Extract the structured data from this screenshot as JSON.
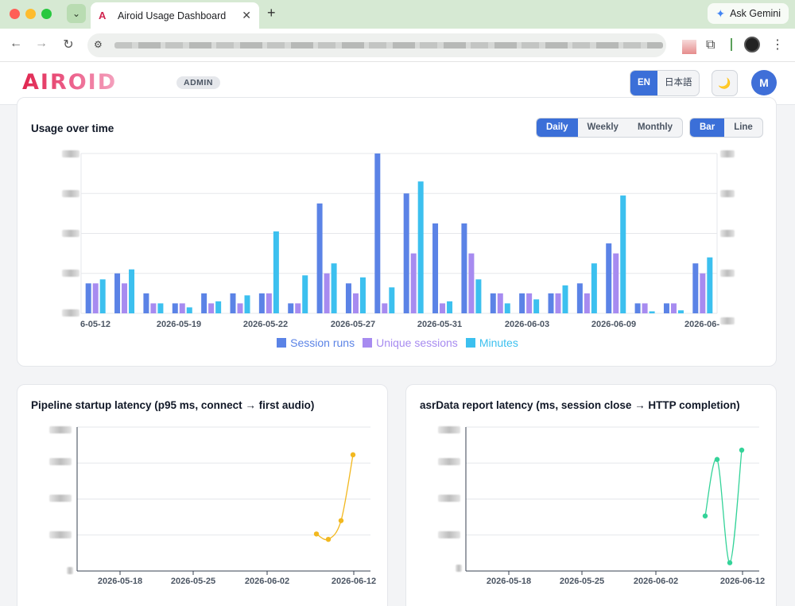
{
  "browser": {
    "tab_title": "Airoid Usage Dashboard",
    "tab_favicon": "A",
    "ask_gemini": "Ask Gemini",
    "icons": [
      "chevron-down-icon",
      "close-icon",
      "plus-icon",
      "back-icon",
      "forward-icon",
      "reload-icon",
      "site-info-icon",
      "extension-icon",
      "profile-icon",
      "kebab-icon",
      "gemini-icon"
    ]
  },
  "header": {
    "logo": "AIROID",
    "role_badge": "ADMIN",
    "lang_en": "EN",
    "lang_ja": "日本語",
    "theme_icon": "🌙",
    "avatar_initial": "M"
  },
  "usage": {
    "title": "Usage over time",
    "periods": [
      "Daily",
      "Weekly",
      "Monthly"
    ],
    "active_period": "Daily",
    "chart_types": [
      "Bar",
      "Line"
    ],
    "active_chart_type": "Bar"
  },
  "pipeline": {
    "title": "Pipeline startup latency (p95 ms, connect → first audio)"
  },
  "asr": {
    "title": "asrData report latency (ms, session close → HTTP completion)"
  },
  "colors": {
    "session_runs": "#5b83e6",
    "unique_sessions": "#a78bf0",
    "minutes": "#3cc0ef",
    "pipeline_line": "#f2b81f",
    "asr_line": "#34d399",
    "accent": "#3b6fd8"
  },
  "chart_data": [
    {
      "type": "bar",
      "title": "Usage over time",
      "x_tick_labels": [
        "6-05-12",
        "2026-05-19",
        "2026-05-22",
        "2026-05-27",
        "2026-05-31",
        "2026-06-03",
        "2026-06-09",
        "2026-06-"
      ],
      "legend_placement": "bottom",
      "grid": true,
      "ylim_relative": [
        0,
        8
      ],
      "series": [
        {
          "name": "Session runs",
          "values": [
            1.5,
            2,
            1,
            0.5,
            1,
            1,
            1,
            0.5,
            5.5,
            1.5,
            8,
            6,
            4.5,
            4.5,
            1,
            1,
            1,
            1.5,
            3.5,
            0.5,
            0.5,
            2.5
          ]
        },
        {
          "name": "Unique sessions",
          "values": [
            1.5,
            1.5,
            0.5,
            0.5,
            0.5,
            0.5,
            1,
            0.5,
            2,
            1,
            0.5,
            3,
            0.5,
            3,
            1,
            1,
            1,
            1,
            3,
            0.5,
            0.5,
            2
          ]
        },
        {
          "name": "Minutes",
          "values": [
            1.7,
            2.2,
            0.5,
            0.3,
            0.6,
            0.9,
            4.1,
            1.9,
            2.5,
            1.8,
            1.3,
            6.6,
            0.6,
            1.7,
            0.5,
            0.7,
            1.4,
            2.5,
            5.9,
            0.1,
            0.15,
            2.8
          ]
        }
      ]
    },
    {
      "type": "line",
      "title": "Pipeline startup latency (p95 ms, connect → first audio)",
      "x_tick_labels": [
        "2026-05-18",
        "2026-05-25",
        "2026-06-02",
        "2026-06-12"
      ],
      "grid": true,
      "ylim_relative": [
        0,
        4
      ],
      "series": [
        {
          "name": "",
          "x": [
            "2026-06-09",
            "2026-06-10",
            "2026-06-11",
            "2026-06-12"
          ],
          "values": [
            1.03,
            0.88,
            1.4,
            3.23
          ]
        }
      ]
    },
    {
      "type": "line",
      "title": "asrData report latency (ms, session close → HTTP completion)",
      "x_tick_labels": [
        "2026-05-18",
        "2026-05-25",
        "2026-06-02",
        "2026-06-12"
      ],
      "grid": true,
      "ylim_relative": [
        0,
        4
      ],
      "series": [
        {
          "name": "",
          "x": [
            "2026-06-09",
            "2026-06-10",
            "2026-06-11",
            "2026-06-12"
          ],
          "values": [
            1.53,
            3.1,
            0.23,
            3.36
          ]
        }
      ]
    }
  ]
}
